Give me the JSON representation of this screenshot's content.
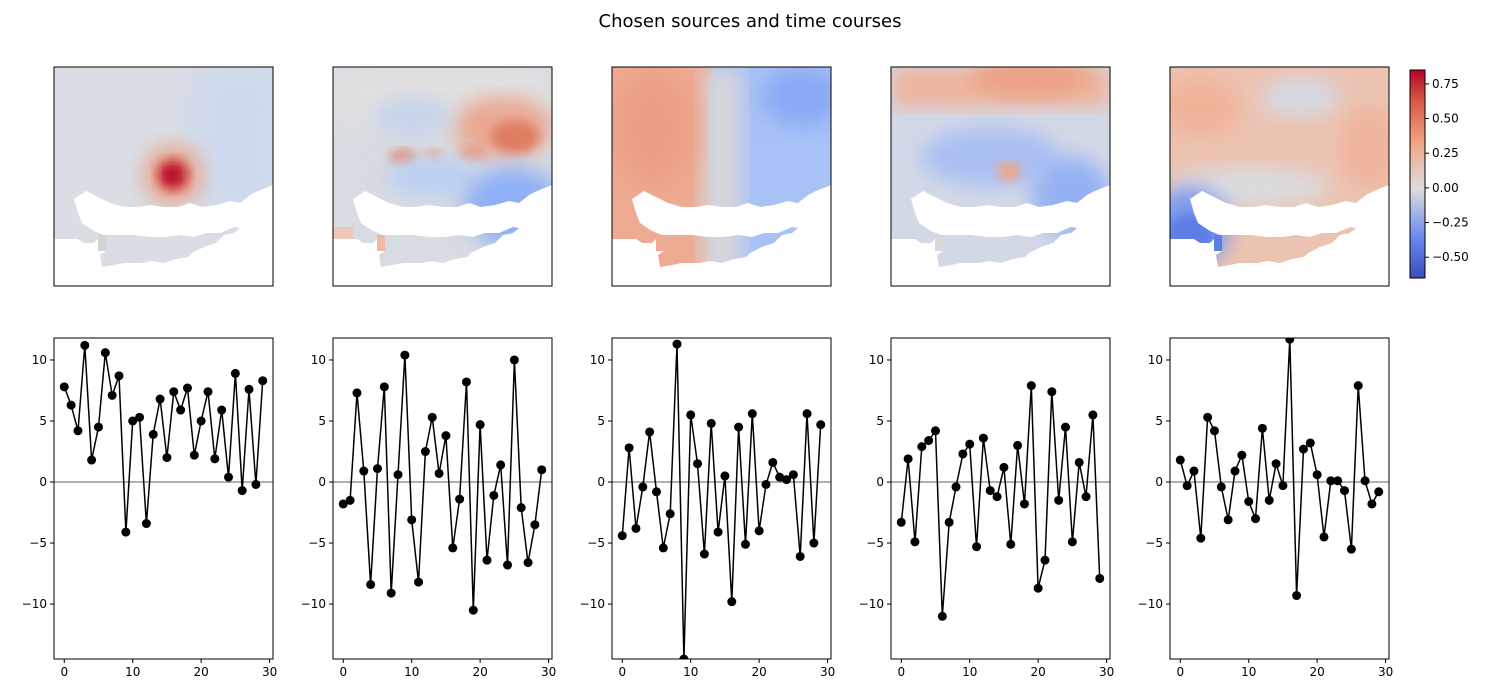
{
  "figure": {
    "title": "Chosen sources and time courses"
  },
  "colorbar": {
    "colormap": "coolwarm",
    "range": [
      -0.65,
      0.85
    ],
    "ticks": [
      0.75,
      0.5,
      0.25,
      0.0,
      -0.25,
      -0.5
    ],
    "tick_labels": [
      "0.75",
      "0.50",
      "0.25",
      "0.00",
      "−0.25",
      "−0.50"
    ],
    "colors": {
      "low": "#3b4cc0",
      "mid": "#dddddd",
      "high": "#b40426"
    }
  },
  "chart_data": [
    {
      "type": "heatmap",
      "panel": "source-map-1",
      "description_colors": "red hotspot centred over land, near-zero elsewhere"
    },
    {
      "type": "heatmap",
      "panel": "source-map-2",
      "description_colors": "mixed weak red patches north, blue south-east"
    },
    {
      "type": "heatmap",
      "panel": "source-map-3",
      "description_colors": "red west half, blue east half"
    },
    {
      "type": "heatmap",
      "panel": "source-map-4",
      "description_colors": "red north band, blue centre with small red spot"
    },
    {
      "type": "heatmap",
      "panel": "source-map-5",
      "description_colors": "light red north, blue south-west corner"
    },
    {
      "type": "line",
      "panel": "time-course-1",
      "x": [
        0,
        1,
        2,
        3,
        4,
        5,
        6,
        7,
        8,
        9,
        10,
        11,
        12,
        13,
        14,
        15,
        16,
        17,
        18,
        19,
        20,
        21,
        22,
        23,
        24,
        25,
        26,
        27,
        28,
        29
      ],
      "values": [
        7.8,
        6.3,
        4.2,
        11.2,
        1.8,
        4.5,
        10.6,
        7.1,
        8.7,
        -4.1,
        5.0,
        5.3,
        -3.4,
        3.9,
        6.8,
        2.0,
        7.4,
        5.9,
        7.7,
        2.2,
        5.0,
        7.4,
        1.9,
        5.9,
        0.4,
        8.9,
        -0.7,
        7.6,
        -0.2,
        8.3
      ],
      "xlim": [
        -1.5,
        30.5
      ],
      "ylim": [
        -14.5,
        11.8
      ],
      "xticks": [
        "0",
        "10",
        "20",
        "30"
      ],
      "yticks": [
        "−10",
        "−5",
        "0",
        "5",
        "10"
      ]
    },
    {
      "type": "line",
      "panel": "time-course-2",
      "x": [
        0,
        1,
        2,
        3,
        4,
        5,
        6,
        7,
        8,
        9,
        10,
        11,
        12,
        13,
        14,
        15,
        16,
        17,
        18,
        19,
        20,
        21,
        22,
        23,
        24,
        25,
        26,
        27,
        28,
        29
      ],
      "values": [
        -1.8,
        -1.5,
        7.3,
        0.9,
        -8.4,
        1.1,
        7.8,
        -9.1,
        0.6,
        10.4,
        -3.1,
        -8.2,
        2.5,
        5.3,
        0.7,
        3.8,
        -5.4,
        -1.4,
        8.2,
        -10.5,
        4.7,
        -6.4,
        -1.1,
        1.4,
        -6.8,
        10.0,
        -2.1,
        -6.6,
        -3.5,
        1.0
      ],
      "xlim": [
        -1.5,
        30.5
      ],
      "ylim": [
        -14.5,
        11.8
      ],
      "xticks": [
        "0",
        "10",
        "20",
        "30"
      ],
      "yticks": [
        "−10",
        "−5",
        "0",
        "5",
        "10"
      ]
    },
    {
      "type": "line",
      "panel": "time-course-3",
      "x": [
        0,
        1,
        2,
        3,
        4,
        5,
        6,
        7,
        8,
        9,
        10,
        11,
        12,
        13,
        14,
        15,
        16,
        17,
        18,
        19,
        20,
        21,
        22,
        23,
        24,
        25,
        26,
        27,
        28,
        29
      ],
      "values": [
        -4.4,
        2.8,
        -3.8,
        -0.4,
        4.1,
        -0.8,
        -5.4,
        -2.6,
        11.3,
        -14.5,
        5.5,
        1.5,
        -5.9,
        4.8,
        -4.1,
        0.5,
        -9.8,
        4.5,
        -5.1,
        5.6,
        -4.0,
        -0.2,
        1.6,
        0.4,
        0.2,
        0.6,
        -6.1,
        5.6,
        -5.0,
        4.7
      ],
      "xlim": [
        -1.5,
        30.5
      ],
      "ylim": [
        -14.5,
        11.8
      ],
      "xticks": [
        "0",
        "10",
        "20",
        "30"
      ],
      "yticks": [
        "−10",
        "−5",
        "0",
        "5",
        "10"
      ]
    },
    {
      "type": "line",
      "panel": "time-course-4",
      "x": [
        0,
        1,
        2,
        3,
        4,
        5,
        6,
        7,
        8,
        9,
        10,
        11,
        12,
        13,
        14,
        15,
        16,
        17,
        18,
        19,
        20,
        21,
        22,
        23,
        24,
        25,
        26,
        27,
        28,
        29
      ],
      "values": [
        -3.3,
        1.9,
        -4.9,
        2.9,
        3.4,
        4.2,
        -11.0,
        -3.3,
        -0.4,
        2.3,
        3.1,
        -5.3,
        3.6,
        -0.7,
        -1.2,
        1.2,
        -5.1,
        3.0,
        -1.8,
        7.9,
        -8.7,
        -6.4,
        7.4,
        -1.5,
        4.5,
        -4.9,
        1.6,
        -1.2,
        5.5,
        -7.9
      ],
      "xlim": [
        -1.5,
        30.5
      ],
      "ylim": [
        -14.5,
        11.8
      ],
      "xticks": [
        "0",
        "10",
        "20",
        "30"
      ],
      "yticks": [
        "−10",
        "−5",
        "0",
        "5",
        "10"
      ]
    },
    {
      "type": "line",
      "panel": "time-course-5",
      "x": [
        0,
        1,
        2,
        3,
        4,
        5,
        6,
        7,
        8,
        9,
        10,
        11,
        12,
        13,
        14,
        15,
        16,
        17,
        18,
        19,
        20,
        21,
        22,
        23,
        24,
        25,
        26,
        27,
        28,
        29
      ],
      "values": [
        1.8,
        -0.3,
        0.9,
        -4.6,
        5.3,
        4.2,
        -0.4,
        -3.1,
        0.9,
        2.2,
        -1.6,
        -3.0,
        4.4,
        -1.5,
        1.5,
        -0.3,
        11.7,
        -9.3,
        2.7,
        3.2,
        0.6,
        -4.5,
        0.1,
        0.1,
        -0.7,
        -5.5,
        7.9,
        0.1,
        -1.8,
        -0.8
      ],
      "xlim": [
        -1.5,
        30.5
      ],
      "ylim": [
        -14.5,
        11.8
      ],
      "xticks": [
        "0",
        "10",
        "20",
        "30"
      ],
      "yticks": [
        "−10",
        "−5",
        "0",
        "5",
        "10"
      ]
    }
  ]
}
